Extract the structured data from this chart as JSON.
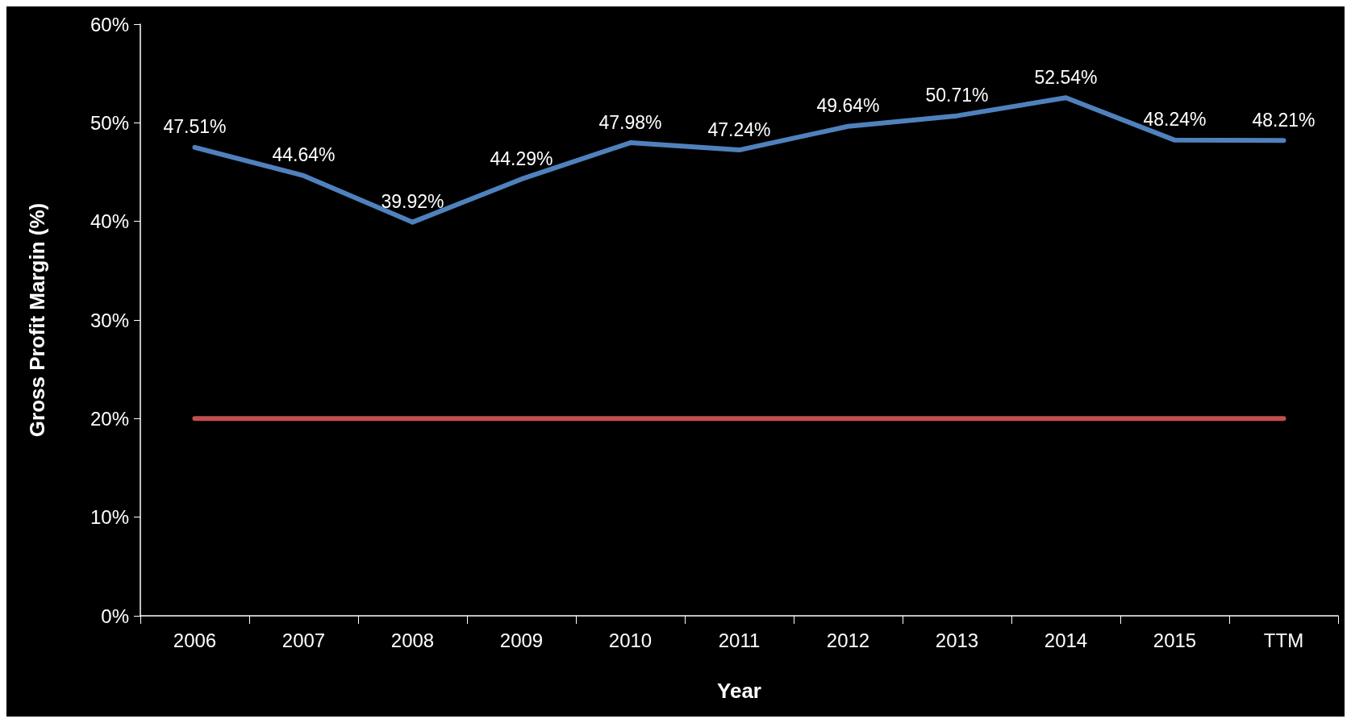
{
  "chart_data": {
    "type": "line",
    "xlabel": "Year",
    "ylabel": "Gross Profit Margin (%)",
    "categories": [
      "2006",
      "2007",
      "2008",
      "2009",
      "2010",
      "2011",
      "2012",
      "2013",
      "2014",
      "2015",
      "TTM"
    ],
    "series": [
      {
        "color": "#4f81bd",
        "values": [
          47.51,
          44.64,
          39.92,
          44.29,
          47.98,
          47.24,
          49.64,
          50.71,
          52.54,
          48.24,
          48.21
        ],
        "value_labels": [
          "47.51%",
          "44.64%",
          "39.92%",
          "44.29%",
          "47.98%",
          "47.24%",
          "49.64%",
          "50.71%",
          "52.54%",
          "48.24%",
          "48.21%"
        ]
      },
      {
        "color": "#c0504d",
        "values": [
          20,
          20,
          20,
          20,
          20,
          20,
          20,
          20,
          20,
          20,
          20
        ]
      }
    ],
    "ylim": [
      0,
      60
    ],
    "yticks": [
      {
        "value": 0,
        "label": "0%"
      },
      {
        "value": 10,
        "label": "10%"
      },
      {
        "value": 20,
        "label": "20%"
      },
      {
        "value": 30,
        "label": "30%"
      },
      {
        "value": 40,
        "label": "40%"
      },
      {
        "value": 50,
        "label": "50%"
      },
      {
        "value": 60,
        "label": "60%"
      }
    ],
    "grid": false,
    "marker": "none",
    "line_style": "solid"
  }
}
